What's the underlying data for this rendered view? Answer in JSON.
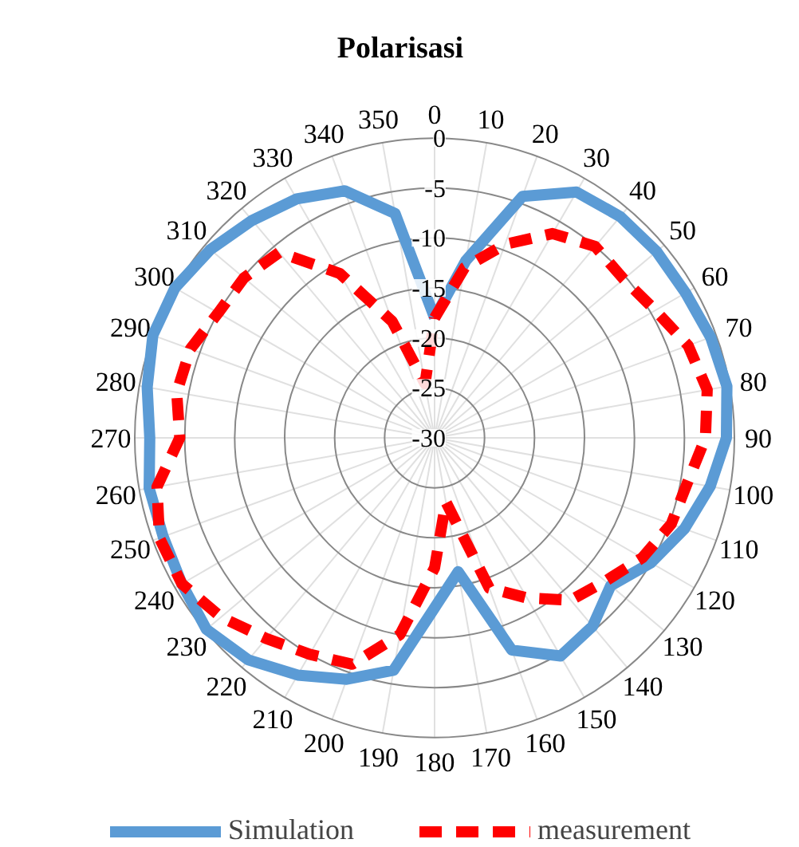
{
  "chart_data": {
    "type": "radar",
    "title": "Polarisasi",
    "categories": [
      "0",
      "10",
      "20",
      "30",
      "40",
      "50",
      "60",
      "70",
      "80",
      "90",
      "100",
      "110",
      "120",
      "130",
      "140",
      "150",
      "160",
      "170",
      "180",
      "190",
      "200",
      "210",
      "220",
      "230",
      "240",
      "250",
      "260",
      "270",
      "280",
      "290",
      "300",
      "310",
      "320",
      "330",
      "340",
      "350"
    ],
    "ylim": [
      -30,
      0
    ],
    "yticks": [
      -30,
      -25,
      -20,
      -15,
      -10,
      -5,
      0
    ],
    "grid": true,
    "legend": "bottom",
    "series": [
      {
        "name": "Simulation",
        "color": "#5b9bd5",
        "line_style": "solid",
        "values": [
          -18,
          -12,
          -4.3,
          -1.6,
          -1.1,
          -1,
          -1,
          -0.6,
          -0.3,
          -0.8,
          -2,
          -3.4,
          -5,
          -7,
          -5.4,
          -4.8,
          -7.4,
          -16.4,
          -13,
          -6.4,
          -4.3,
          -2.6,
          -1,
          -0.2,
          -0.8,
          -1.1,
          -1,
          -1.5,
          -0.8,
          0,
          0,
          -0.7,
          -1.6,
          -2.4,
          -3.7,
          -7.2
        ]
      },
      {
        "name": "measurement",
        "color": "#ff0000",
        "line_style": "dashed",
        "values": [
          -18,
          -12.7,
          -9.4,
          -6.4,
          -5,
          -5.3,
          -4.5,
          -3,
          -2.3,
          -2.9,
          -4.3,
          -4.8,
          -6,
          -7.7,
          -8.8,
          -11.5,
          -14,
          -23.5,
          -17,
          -10,
          -5.9,
          -5,
          -3.8,
          -2.1,
          -0.8,
          -0.7,
          -1.8,
          -4.5,
          -3.8,
          -4,
          -5,
          -5.1,
          -5.8,
          -11,
          -17.6,
          -24.5
        ]
      }
    ]
  }
}
